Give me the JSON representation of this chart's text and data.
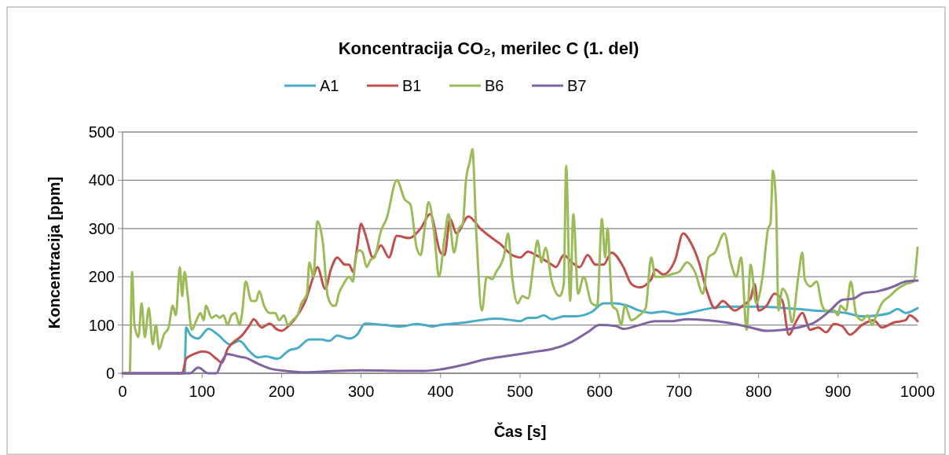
{
  "chart_data": {
    "type": "line",
    "title": "Koncentracija CO₂, merilec C (1. del)",
    "xlabel": "Čas [s]",
    "ylabel": "Koncentracija [ppm]",
    "xlim": [
      0,
      1000
    ],
    "xticks": [
      0,
      100,
      200,
      300,
      400,
      500,
      600,
      700,
      800,
      900,
      1000
    ],
    "ylim": [
      0,
      500
    ],
    "yticks": [
      0,
      100,
      200,
      300,
      400,
      500
    ],
    "grid": "y",
    "legend": "top",
    "marker": "none",
    "line_style": "solid",
    "series": [
      {
        "name": "A1",
        "color": "#4bacc6",
        "x": [
          0,
          78,
          80,
          85,
          95,
          108,
          120,
          135,
          147,
          160,
          170,
          180,
          195,
          210,
          220,
          235,
          250,
          260,
          270,
          285,
          295,
          305,
          330,
          350,
          370,
          380,
          390,
          400,
          430,
          450,
          470,
          490,
          500,
          510,
          520,
          530,
          540,
          555,
          570,
          590,
          605,
          620,
          635,
          650,
          665,
          680,
          700,
          720,
          740,
          760,
          800,
          820,
          850,
          870,
          890,
          910,
          930,
          950,
          965,
          975,
          985,
          1000
        ],
        "values": [
          0,
          0,
          95,
          80,
          72,
          92,
          80,
          60,
          67,
          45,
          33,
          35,
          30,
          48,
          52,
          70,
          70,
          67,
          78,
          72,
          80,
          103,
          100,
          97,
          102,
          100,
          97,
          100,
          105,
          110,
          113,
          110,
          108,
          115,
          115,
          120,
          112,
          118,
          118,
          127,
          145,
          145,
          140,
          130,
          125,
          128,
          122,
          128,
          135,
          138,
          138,
          137,
          133,
          130,
          128,
          125,
          118,
          120,
          125,
          133,
          125,
          135
        ]
      },
      {
        "name": "B1",
        "color": "#c0504d",
        "x": [
          0,
          75,
          80,
          90,
          100,
          108,
          118,
          125,
          132,
          140,
          150,
          160,
          165,
          175,
          185,
          195,
          200,
          210,
          220,
          230,
          240,
          245,
          255,
          262,
          270,
          280,
          285,
          290,
          295,
          300,
          305,
          315,
          325,
          335,
          345,
          360,
          375,
          387,
          400,
          405,
          412,
          420,
          435,
          450,
          465,
          475,
          490,
          500,
          510,
          520,
          540,
          545,
          555,
          565,
          575,
          585,
          595,
          605,
          615,
          630,
          640,
          650,
          665,
          670,
          680,
          695,
          705,
          715,
          725,
          735,
          745,
          755,
          770,
          780,
          790,
          795,
          800,
          810,
          820,
          830,
          838,
          848,
          855,
          865,
          875,
          885,
          895,
          905,
          915,
          930,
          945,
          955,
          970,
          985,
          990,
          1000
        ],
        "values": [
          0,
          0,
          30,
          40,
          45,
          43,
          30,
          22,
          50,
          65,
          78,
          100,
          112,
          95,
          103,
          90,
          88,
          100,
          120,
          150,
          200,
          220,
          175,
          215,
          240,
          225,
          225,
          210,
          260,
          310,
          290,
          240,
          265,
          240,
          285,
          280,
          300,
          330,
          250,
          245,
          320,
          290,
          325,
          300,
          280,
          268,
          245,
          240,
          252,
          245,
          225,
          220,
          245,
          230,
          220,
          245,
          225,
          225,
          250,
          220,
          185,
          178,
          195,
          215,
          205,
          235,
          290,
          270,
          230,
          170,
          135,
          150,
          130,
          140,
          155,
          185,
          130,
          140,
          165,
          150,
          80,
          110,
          125,
          90,
          95,
          85,
          102,
          98,
          80,
          100,
          110,
          95,
          105,
          110,
          120,
          108
        ]
      },
      {
        "name": "B6",
        "color": "#9bbb59",
        "x": [
          0,
          9,
          12,
          15,
          20,
          24,
          28,
          33,
          38,
          42,
          46,
          52,
          58,
          63,
          67,
          72,
          75,
          78,
          82,
          87,
          93,
          98,
          102,
          105,
          112,
          118,
          122,
          127,
          132,
          137,
          142,
          147,
          150,
          155,
          162,
          168,
          172,
          178,
          185,
          192,
          197,
          203,
          208,
          214,
          220,
          225,
          232,
          235,
          240,
          245,
          252,
          258,
          265,
          268,
          272,
          278,
          285,
          290,
          293,
          298,
          302,
          307,
          312,
          317,
          325,
          332,
          345,
          355,
          362,
          370,
          375,
          380,
          385,
          392,
          398,
          405,
          410,
          417,
          423,
          428,
          432,
          437,
          440,
          445,
          452,
          458,
          465,
          470,
          480,
          485,
          490,
          497,
          503,
          510,
          518,
          522,
          527,
          532,
          540,
          550,
          555,
          558,
          563,
          567,
          573,
          580,
          590,
          597,
          603,
          607,
          610,
          616,
          622,
          627,
          632,
          640,
          650,
          658,
          665,
          670,
          680,
          690,
          700,
          710,
          720,
          730,
          737,
          745,
          757,
          765,
          772,
          778,
          785,
          790,
          797,
          805,
          812,
          815,
          818,
          822,
          825,
          830,
          837,
          842,
          850,
          855,
          858,
          865,
          873,
          880,
          885,
          895,
          900,
          903,
          910,
          916,
          923,
          930,
          937,
          943,
          947,
          955,
          965,
          975,
          985,
          995,
          1000
        ],
        "values": [
          0,
          0,
          210,
          100,
          75,
          145,
          75,
          135,
          60,
          100,
          50,
          80,
          95,
          140,
          120,
          220,
          160,
          210,
          160,
          90,
          110,
          125,
          110,
          140,
          115,
          120,
          115,
          120,
          100,
          120,
          125,
          100,
          120,
          190,
          150,
          150,
          170,
          140,
          125,
          125,
          110,
          120,
          100,
          110,
          120,
          145,
          165,
          230,
          200,
          315,
          270,
          160,
          140,
          140,
          165,
          185,
          200,
          190,
          240,
          255,
          250,
          220,
          235,
          240,
          295,
          320,
          400,
          360,
          350,
          260,
          245,
          300,
          355,
          290,
          200,
          280,
          330,
          250,
          300,
          310,
          400,
          440,
          465,
          290,
          130,
          200,
          195,
          210,
          245,
          290,
          200,
          145,
          160,
          155,
          240,
          275,
          230,
          260,
          190,
          160,
          185,
          430,
          150,
          330,
          165,
          200,
          145,
          140,
          320,
          240,
          300,
          140,
          130,
          100,
          140,
          110,
          120,
          135,
          240,
          200,
          200,
          205,
          210,
          230,
          210,
          165,
          240,
          250,
          290,
          230,
          200,
          240,
          90,
          225,
          145,
          200,
          300,
          310,
          420,
          350,
          130,
          175,
          155,
          105,
          200,
          250,
          195,
          180,
          190,
          140,
          130,
          130,
          120,
          140,
          130,
          190,
          120,
          110,
          120,
          100,
          115,
          145,
          160,
          175,
          185,
          190,
          260
        ]
      },
      {
        "name": "B7",
        "color": "#8064a2",
        "x": [
          0,
          85,
          95,
          108,
          118,
          125,
          132,
          145,
          155,
          170,
          185,
          205,
          230,
          270,
          300,
          350,
          380,
          400,
          430,
          460,
          480,
          500,
          520,
          540,
          565,
          585,
          600,
          620,
          630,
          650,
          670,
          690,
          710,
          735,
          760,
          790,
          810,
          830,
          850,
          870,
          890,
          905,
          920,
          930,
          950,
          970,
          985,
          1000
        ],
        "values": [
          0,
          0,
          12,
          0,
          0,
          25,
          40,
          35,
          32,
          20,
          10,
          5,
          2,
          5,
          6,
          5,
          5,
          8,
          18,
          30,
          35,
          40,
          45,
          50,
          65,
          85,
          100,
          98,
          92,
          100,
          108,
          108,
          112,
          110,
          105,
          95,
          88,
          90,
          95,
          105,
          130,
          152,
          155,
          165,
          170,
          180,
          190,
          192
        ]
      }
    ]
  }
}
